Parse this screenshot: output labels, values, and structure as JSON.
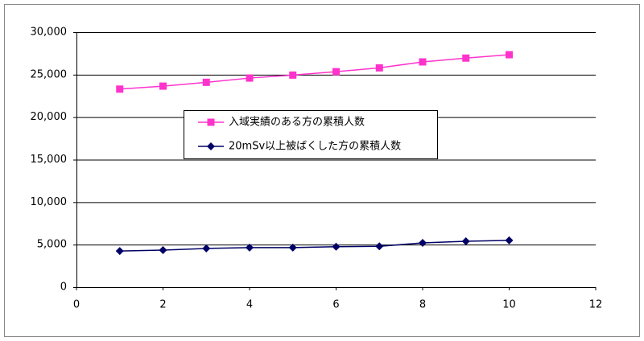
{
  "chart_data": {
    "type": "line",
    "x": [
      1,
      2,
      3,
      4,
      5,
      6,
      7,
      8,
      9,
      10
    ],
    "series": [
      {
        "name": "入域実績のある方の累積人数",
        "color": "#ff33cc",
        "marker": "square",
        "values": [
          23300,
          23650,
          24100,
          24600,
          24950,
          25350,
          25800,
          26500,
          26950,
          27350
        ]
      },
      {
        "name": "20mSv以上被ばくした方の累積人数",
        "color": "#000066",
        "marker": "diamond",
        "values": [
          4250,
          4350,
          4550,
          4650,
          4650,
          4750,
          4800,
          5200,
          5400,
          5500
        ]
      }
    ],
    "xlim": [
      0,
      12
    ],
    "xticks": [
      0,
      2,
      4,
      6,
      8,
      10,
      12
    ],
    "ylim": [
      0,
      30000
    ],
    "yticks": [
      0,
      {
        "value": 5000,
        "label": "5,000"
      },
      {
        "value": 10000,
        "label": "10,000"
      },
      {
        "value": 15000,
        "label": "15,000"
      },
      {
        "value": 20000,
        "label": "20,000"
      },
      {
        "value": 25000,
        "label": "25,000"
      },
      {
        "value": 30000,
        "label": "30,000"
      }
    ],
    "grid": true,
    "legend": "center"
  }
}
